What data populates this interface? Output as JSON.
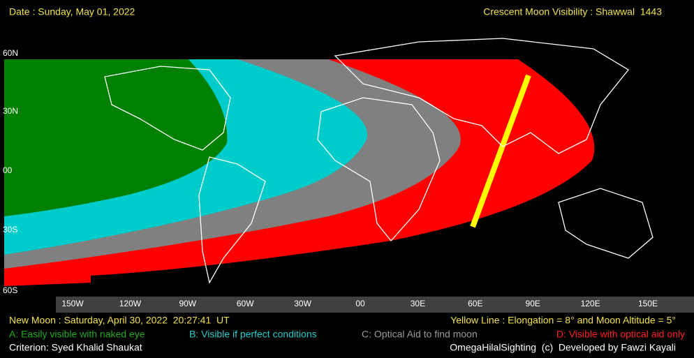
{
  "header": {
    "date": "Date : Sunday, May 01, 2022",
    "title": "Crescent Moon Visibility : Shawwal  1443"
  },
  "map": {
    "latitude_labels": [
      "60N",
      "30N",
      "00",
      "30S",
      "60S"
    ],
    "longitude_labels": [
      "150W",
      "120W",
      "90W",
      "60W",
      "30W",
      "00",
      "30E",
      "60E",
      "90E",
      "120E",
      "150E"
    ]
  },
  "footer": {
    "new_moon": "New Moon : Saturday, April 30, 2022  20:27:41  UT",
    "yellow_line": "Yellow Line : Elongation = 8° and Moon Altitude = 5°",
    "legend": [
      "A: Easily visible with naked eye",
      "B: Visible if perfect conditions",
      "C: Optical Aid to find moon",
      "D: Visible with optical aid only"
    ],
    "criterion": "Criterion: Syed Khalid Shaukat",
    "credit": "OmegaHilalSighting  (c)  Developed by Fawzi Kayali"
  }
}
